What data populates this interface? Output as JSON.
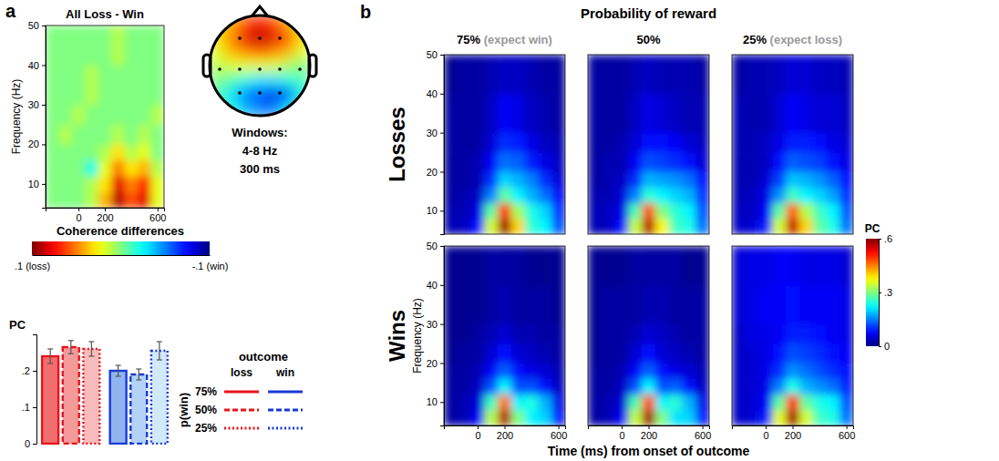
{
  "chart_data": [
    {
      "type": "heatmap",
      "panel": "a",
      "title": "All Loss - Win",
      "y_label": "Frequency (Hz)",
      "x_edges": [
        -250,
        -150,
        -50,
        50,
        150,
        250,
        350,
        450,
        550,
        650
      ],
      "y_edges": [
        4,
        8,
        12,
        16,
        20,
        25,
        30,
        40,
        50
      ],
      "xlim": [
        -250,
        650
      ],
      "xticks": [
        0,
        200,
        600
      ],
      "ylim": [
        4,
        50
      ],
      "yticks": [
        10,
        20,
        30,
        40,
        50
      ],
      "cells": [
        [
          0,
          0,
          0,
          0.01,
          0.04,
          0.09,
          0.06,
          0.08,
          0.02
        ],
        [
          0,
          0,
          0,
          0.01,
          0.03,
          0.08,
          0.05,
          0.07,
          0.02
        ],
        [
          0,
          0,
          0,
          -0.02,
          0.02,
          0.05,
          0.03,
          0.04,
          0.01
        ],
        [
          0,
          0,
          0,
          0,
          0.01,
          0.03,
          0.01,
          0.02,
          0
        ],
        [
          0,
          0.01,
          0,
          0,
          0,
          0.01,
          0,
          0.01,
          0
        ],
        [
          0,
          0,
          0.01,
          0,
          0,
          0,
          0,
          0,
          0.01
        ],
        [
          0,
          0,
          0,
          0.01,
          0,
          0,
          0,
          0,
          0
        ],
        [
          0,
          0,
          0,
          0,
          0,
          0.01,
          0,
          0,
          0
        ]
      ],
      "colorbar": {
        "title": "Coherence differences",
        "range": [
          0.1,
          -0.1
        ],
        "ticks": [
          {
            "value": 0.1,
            "label": ".1 (loss)"
          },
          {
            "value": -0.1,
            "label": "-.1 (win)"
          }
        ]
      }
    },
    {
      "type": "topomap",
      "values": [
        [
          0.02,
          0.04,
          0.06,
          0.07,
          0.06,
          0.04,
          0.02
        ],
        [
          0.03,
          0.05,
          0.08,
          0.09,
          0.08,
          0.06,
          0.03
        ],
        [
          0.02,
          0.04,
          0.05,
          0.06,
          0.05,
          0.04,
          0.02
        ],
        [
          0.01,
          0.02,
          0.02,
          0.02,
          0.02,
          0.01,
          0
        ],
        [
          0,
          -0.01,
          -0.02,
          -0.03,
          -0.03,
          -0.02,
          -0.01
        ],
        [
          -0.01,
          -0.03,
          -0.05,
          -0.06,
          -0.08,
          -0.06,
          -0.02
        ],
        [
          -0.01,
          -0.02,
          -0.04,
          -0.05,
          -0.05,
          -0.03,
          -0.01
        ]
      ],
      "annotations": [
        "Windows:",
        "4-8 Hz",
        "300 ms"
      ]
    },
    {
      "type": "bar",
      "y_label": "PC",
      "ylim": [
        0,
        0.3
      ],
      "yticks": [
        0,
        {
          "value": 0.1,
          "label": ".1"
        },
        {
          "value": 0.2,
          "label": ".2"
        }
      ],
      "categories": [
        "75%",
        "50%",
        "25%"
      ],
      "line_style": [
        "solid",
        "dashed",
        "dotted"
      ],
      "series": [
        {
          "name": "loss",
          "color": "#e8141c",
          "colors": [
            "#f26d6d",
            "#f59a9a",
            "#f8bcbc"
          ],
          "values": [
            0.24,
            0.265,
            0.26
          ],
          "errors": [
            0.02,
            0.018,
            0.02
          ]
        },
        {
          "name": "win",
          "color": "#1a3ad6",
          "colors": [
            "#8fb4f0",
            "#b3d3f6",
            "#d2e8fb"
          ],
          "values": [
            0.2,
            0.19,
            0.255
          ],
          "errors": [
            0.015,
            0.015,
            0.025
          ]
        }
      ],
      "legend": "right",
      "legend_title": "outcome",
      "legend_label": "p(win)"
    },
    {
      "type": "heatmap",
      "panel": "b",
      "title": "Probability of reward",
      "columns": [
        {
          "label": "75%",
          "note": "(expect win)"
        },
        {
          "label": "50%"
        },
        {
          "label": "25%",
          "note": "(expect loss)"
        }
      ],
      "rows": [
        "Losses",
        "Wins"
      ],
      "x_label": "Time (ms) from onset of outcome",
      "y_label": "Frequency (Hz)",
      "x_edges": [
        -250,
        -150,
        -50,
        50,
        150,
        250,
        350,
        450,
        550,
        650
      ],
      "y_edges": [
        4,
        8,
        12,
        16,
        20,
        25,
        30,
        40,
        50
      ],
      "xlim": [
        -250,
        650
      ],
      "xticks": [
        0,
        200,
        600
      ],
      "ylim": [
        4,
        50
      ],
      "yticks": [
        10,
        20,
        30,
        40,
        50
      ],
      "panels": [
        [
          [
            [
              0.03,
              0.04,
              0.08,
              0.35,
              0.58,
              0.4,
              0.25,
              0.22,
              0.12
            ],
            [
              0.03,
              0.03,
              0.06,
              0.28,
              0.5,
              0.32,
              0.24,
              0.2,
              0.1
            ],
            [
              0.02,
              0.03,
              0.04,
              0.15,
              0.28,
              0.22,
              0.18,
              0.14,
              0.07
            ],
            [
              0.02,
              0.02,
              0.03,
              0.1,
              0.2,
              0.18,
              0.15,
              0.1,
              0.05
            ],
            [
              0.02,
              0.02,
              0.03,
              0.07,
              0.14,
              0.13,
              0.09,
              0.06,
              0.04
            ],
            [
              0.02,
              0.02,
              0.02,
              0.05,
              0.1,
              0.09,
              0.06,
              0.04,
              0.03
            ],
            [
              0.02,
              0.02,
              0.02,
              0.04,
              0.07,
              0.06,
              0.04,
              0.03,
              0.02
            ],
            [
              0.01,
              0.02,
              0.02,
              0.03,
              0.04,
              0.04,
              0.03,
              0.02,
              0.02
            ]
          ],
          [
            [
              0.03,
              0.04,
              0.08,
              0.34,
              0.57,
              0.38,
              0.26,
              0.24,
              0.14
            ],
            [
              0.03,
              0.04,
              0.06,
              0.27,
              0.48,
              0.3,
              0.25,
              0.22,
              0.12
            ],
            [
              0.03,
              0.03,
              0.05,
              0.15,
              0.25,
              0.22,
              0.2,
              0.18,
              0.1
            ],
            [
              0.02,
              0.03,
              0.04,
              0.1,
              0.18,
              0.17,
              0.16,
              0.14,
              0.08
            ],
            [
              0.02,
              0.03,
              0.03,
              0.07,
              0.12,
              0.11,
              0.1,
              0.08,
              0.05
            ],
            [
              0.02,
              0.02,
              0.03,
              0.05,
              0.08,
              0.08,
              0.07,
              0.05,
              0.04
            ],
            [
              0.02,
              0.02,
              0.02,
              0.04,
              0.06,
              0.05,
              0.04,
              0.03,
              0.03
            ],
            [
              0.02,
              0.02,
              0.02,
              0.03,
              0.04,
              0.03,
              0.03,
              0.03,
              0.02
            ]
          ],
          [
            [
              0.04,
              0.05,
              0.09,
              0.35,
              0.56,
              0.4,
              0.28,
              0.24,
              0.14
            ],
            [
              0.04,
              0.04,
              0.07,
              0.28,
              0.47,
              0.33,
              0.26,
              0.22,
              0.12
            ],
            [
              0.03,
              0.04,
              0.06,
              0.16,
              0.26,
              0.22,
              0.2,
              0.17,
              0.1
            ],
            [
              0.03,
              0.03,
              0.05,
              0.11,
              0.19,
              0.18,
              0.16,
              0.13,
              0.08
            ],
            [
              0.03,
              0.03,
              0.04,
              0.08,
              0.13,
              0.12,
              0.11,
              0.08,
              0.06
            ],
            [
              0.03,
              0.03,
              0.04,
              0.06,
              0.09,
              0.09,
              0.08,
              0.06,
              0.05
            ],
            [
              0.03,
              0.03,
              0.03,
              0.05,
              0.07,
              0.06,
              0.05,
              0.05,
              0.04
            ],
            [
              0.02,
              0.03,
              0.03,
              0.04,
              0.05,
              0.05,
              0.04,
              0.04,
              0.03
            ]
          ]
        ],
        [
          [
            [
              0.02,
              0.03,
              0.07,
              0.33,
              0.57,
              0.3,
              0.22,
              0.2,
              0.08
            ],
            [
              0.02,
              0.03,
              0.05,
              0.26,
              0.46,
              0.22,
              0.24,
              0.18,
              0.06
            ],
            [
              0.02,
              0.02,
              0.04,
              0.12,
              0.22,
              0.12,
              0.12,
              0.08,
              0.04
            ],
            [
              0.02,
              0.02,
              0.03,
              0.07,
              0.13,
              0.08,
              0.06,
              0.05,
              0.03
            ],
            [
              0.01,
              0.02,
              0.02,
              0.05,
              0.08,
              0.05,
              0.04,
              0.03,
              0.02
            ],
            [
              0.01,
              0.01,
              0.02,
              0.03,
              0.05,
              0.03,
              0.03,
              0.02,
              0.02
            ],
            [
              0.01,
              0.01,
              0.01,
              0.02,
              0.03,
              0.02,
              0.02,
              0.02,
              0.01
            ],
            [
              0.01,
              0.01,
              0.01,
              0.02,
              0.02,
              0.02,
              0.01,
              0.01,
              0.01
            ]
          ],
          [
            [
              0.02,
              0.03,
              0.07,
              0.34,
              0.58,
              0.3,
              0.21,
              0.2,
              0.08
            ],
            [
              0.02,
              0.03,
              0.05,
              0.27,
              0.48,
              0.22,
              0.25,
              0.18,
              0.06
            ],
            [
              0.02,
              0.02,
              0.04,
              0.12,
              0.22,
              0.12,
              0.13,
              0.08,
              0.04
            ],
            [
              0.02,
              0.02,
              0.03,
              0.07,
              0.13,
              0.08,
              0.06,
              0.05,
              0.03
            ],
            [
              0.01,
              0.02,
              0.02,
              0.05,
              0.08,
              0.05,
              0.04,
              0.03,
              0.02
            ],
            [
              0.01,
              0.02,
              0.02,
              0.03,
              0.05,
              0.04,
              0.03,
              0.02,
              0.02
            ],
            [
              0.01,
              0.02,
              0.02,
              0.02,
              0.03,
              0.03,
              0.02,
              0.02,
              0.02
            ],
            [
              0.01,
              0.01,
              0.01,
              0.02,
              0.02,
              0.02,
              0.02,
              0.01,
              0.01
            ]
          ],
          [
            [
              0.04,
              0.05,
              0.09,
              0.36,
              0.58,
              0.35,
              0.26,
              0.24,
              0.14
            ],
            [
              0.04,
              0.05,
              0.07,
              0.28,
              0.5,
              0.28,
              0.24,
              0.22,
              0.12
            ],
            [
              0.04,
              0.05,
              0.06,
              0.15,
              0.24,
              0.18,
              0.16,
              0.14,
              0.09
            ],
            [
              0.04,
              0.05,
              0.06,
              0.1,
              0.16,
              0.14,
              0.12,
              0.1,
              0.08
            ],
            [
              0.04,
              0.05,
              0.06,
              0.08,
              0.12,
              0.11,
              0.1,
              0.08,
              0.07
            ],
            [
              0.04,
              0.06,
              0.06,
              0.07,
              0.09,
              0.09,
              0.08,
              0.07,
              0.06
            ],
            [
              0.05,
              0.06,
              0.07,
              0.07,
              0.08,
              0.07,
              0.07,
              0.07,
              0.06
            ],
            [
              0.05,
              0.06,
              0.06,
              0.07,
              0.07,
              0.06,
              0.06,
              0.06,
              0.05
            ]
          ]
        ]
      ],
      "colorbar": {
        "title": "PC",
        "range": [
          0,
          0.6
        ],
        "ticks": [
          0,
          {
            "value": 0.3,
            "label": ".3"
          },
          {
            "value": 0.6,
            "label": ".6"
          }
        ]
      }
    }
  ]
}
